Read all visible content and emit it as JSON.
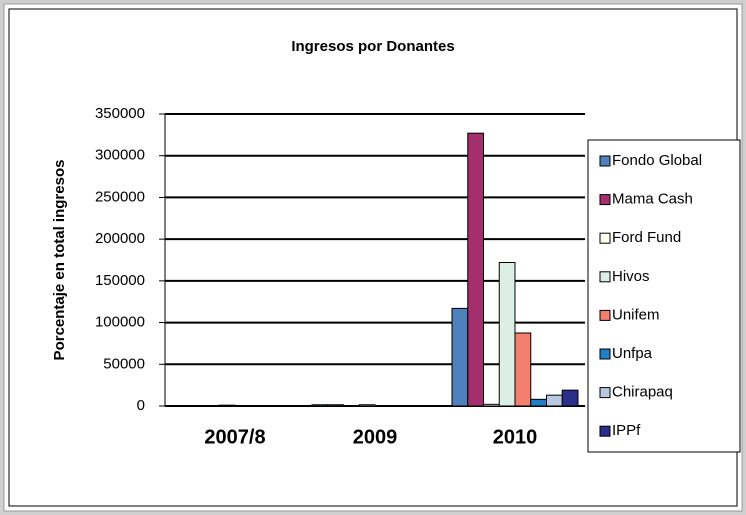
{
  "chart_data": {
    "type": "bar",
    "title": "Ingresos por Donantes",
    "y_label": "Porcentaje en total ingresos",
    "categories": [
      "2007/8",
      "2009",
      "2010"
    ],
    "series": [
      {
        "name": "Fondo Global",
        "color": "#4f81bd",
        "values": [
          0,
          1500,
          117000
        ]
      },
      {
        "name": "Mama Cash",
        "color": "#a3306c",
        "values": [
          0,
          1500,
          327000
        ]
      },
      {
        "name": "Ford Fund",
        "color": "#fffff2",
        "values": [
          0,
          0,
          2000
        ]
      },
      {
        "name": "Hivos",
        "color": "#dcefe6",
        "values": [
          1000,
          1500,
          172000
        ]
      },
      {
        "name": "Unifem",
        "color": "#f2806f",
        "values": [
          0,
          0,
          87500
        ]
      },
      {
        "name": "Unfpa",
        "color": "#1f7fc8",
        "values": [
          0,
          0,
          8000
        ]
      },
      {
        "name": "Chirapaq",
        "color": "#b9c9e2",
        "values": [
          0,
          0,
          13000
        ]
      },
      {
        "name": "IPPf",
        "color": "#2b2f8c",
        "values": [
          0,
          0,
          19000
        ]
      }
    ],
    "ylim": [
      0,
      350000
    ],
    "yticks": [
      0,
      50000,
      100000,
      150000,
      200000,
      250000,
      300000,
      350000
    ],
    "grid": true,
    "legend": "right"
  }
}
